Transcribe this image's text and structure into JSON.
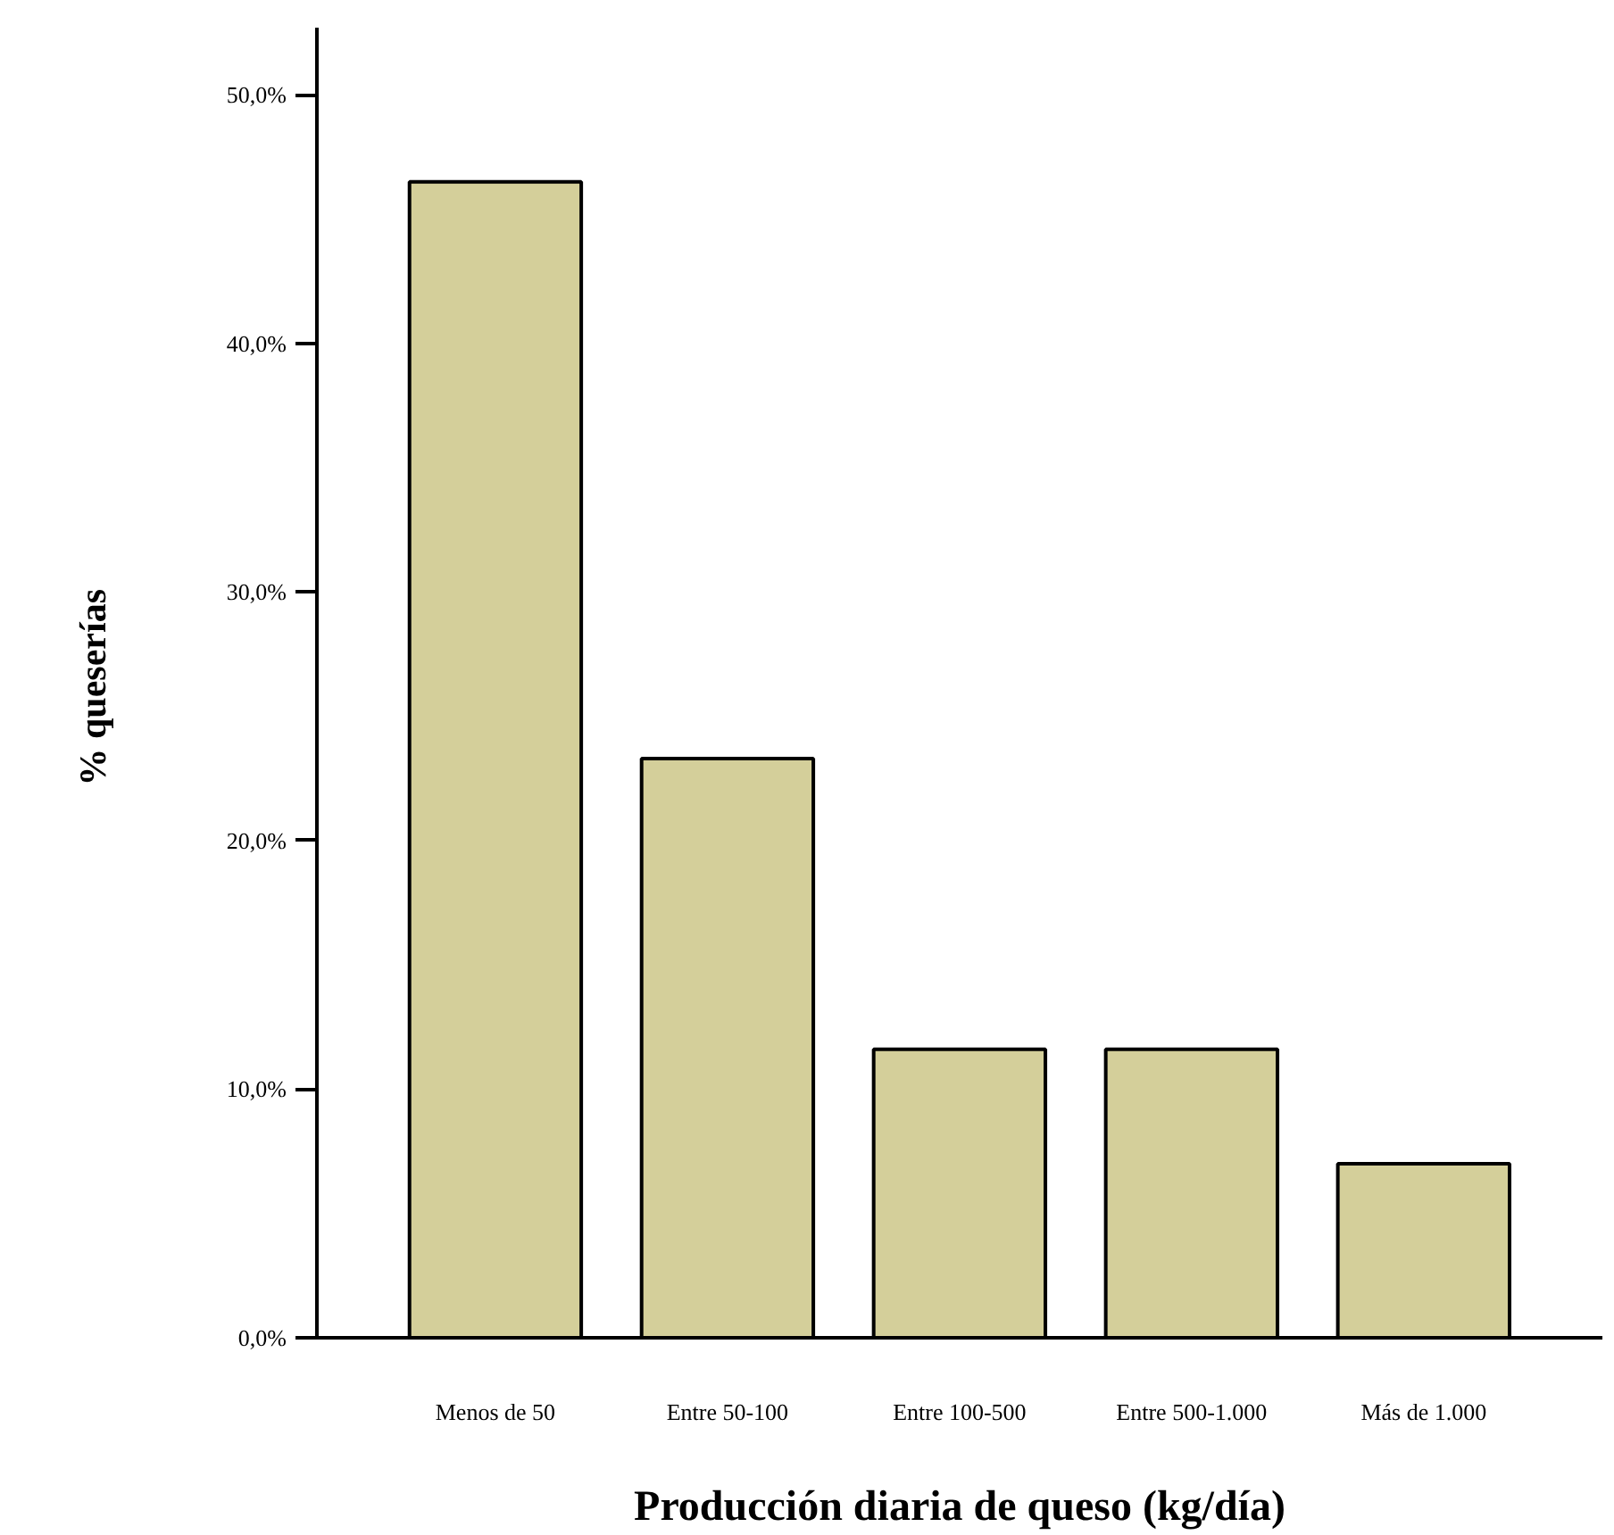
{
  "chart_data": {
    "type": "bar",
    "xlabel": "Producción diaria de queso (kg/día)",
    "ylabel": "%  queserías",
    "categories": [
      "Menos de 50",
      "Entre 50-100",
      "Entre 100-500",
      "Entre 500-1.000",
      "Más de 1.000"
    ],
    "values": [
      46.5,
      23.3,
      11.6,
      11.6,
      7.0
    ],
    "color": "#d4cf9a",
    "ylim": [
      0,
      52.7
    ],
    "yticks": [
      {
        "value": 0,
        "label": "0,0%"
      },
      {
        "value": 10,
        "label": "10,0%"
      },
      {
        "value": 20,
        "label": "20,0%"
      },
      {
        "value": 30,
        "label": "30,0%"
      },
      {
        "value": 40,
        "label": "40,0%"
      },
      {
        "value": 50,
        "label": "50,0%"
      }
    ],
    "grid": false
  }
}
